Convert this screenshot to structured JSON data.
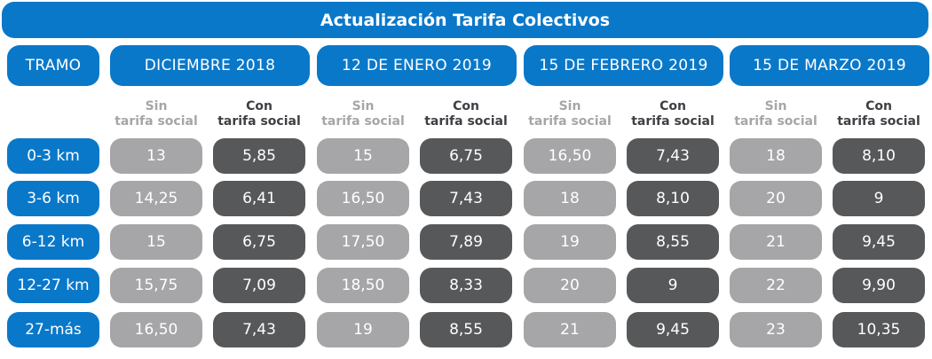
{
  "title": "Actualización Tarifa Colectivos",
  "tramo_header": "TRAMO",
  "sub_labels": {
    "sin_line1": "Sin",
    "sin_line2": "tarifa social",
    "con_line1": "Con",
    "con_line2": "tarifa social"
  },
  "chart_data": {
    "type": "table",
    "title": "Actualización Tarifa Colectivos",
    "row_header": "TRAMO",
    "rows": [
      "0-3 km",
      "3-6 km",
      "6-12 km",
      "12-27 km",
      "27-más"
    ],
    "periods": [
      {
        "label": "DICIEMBRE 2018",
        "sin": [
          "13",
          "14,25",
          "15",
          "15,75",
          "16,50"
        ],
        "con": [
          "5,85",
          "6,41",
          "6,75",
          "7,09",
          "7,43"
        ]
      },
      {
        "label": "12 DE ENERO 2019",
        "sin": [
          "15",
          "16,50",
          "17,50",
          "18,50",
          "19"
        ],
        "con": [
          "6,75",
          "7,43",
          "7,89",
          "8,33",
          "8,55"
        ]
      },
      {
        "label": "15 DE FEBRERO 2019",
        "sin": [
          "16,50",
          "18",
          "19",
          "20",
          "21"
        ],
        "con": [
          "7,43",
          "8,10",
          "8,55",
          "9",
          "9,45"
        ]
      },
      {
        "label": "15 DE MARZO 2019",
        "sin": [
          "18",
          "20",
          "21",
          "22",
          "23"
        ],
        "con": [
          "8,10",
          "9",
          "9,45",
          "9,90",
          "10,35"
        ]
      }
    ]
  },
  "colors": {
    "blue": "#0a78c9",
    "sin_cell": "#a6a6a8",
    "con_cell": "#57585a",
    "sin_text": "#a6a6a6",
    "con_text": "#3f3f44"
  }
}
